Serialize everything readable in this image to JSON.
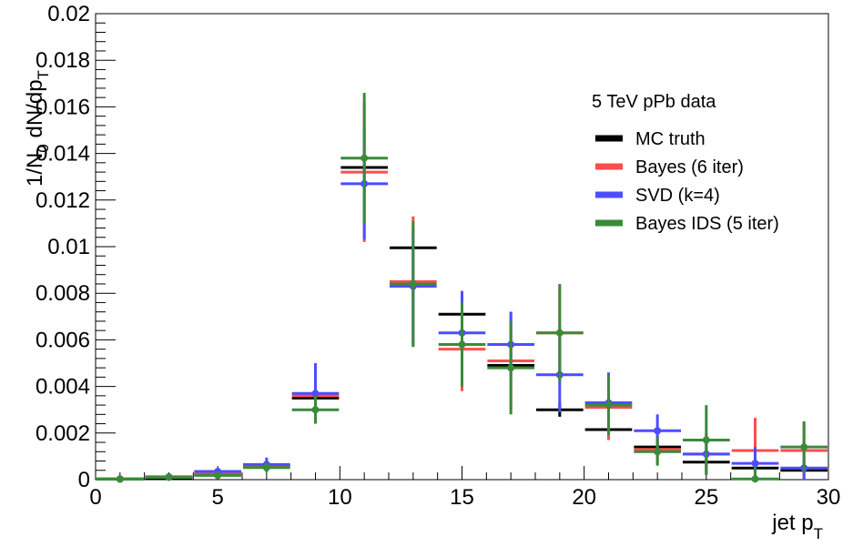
{
  "chart_data": {
    "type": "scatter",
    "title": "",
    "xlabel": "jet p",
    "xlabel_sub": "T",
    "ylabel": "1/N",
    "ylabel_sub": "0",
    "ylabel_rest": " dN/dp",
    "ylabel_sub2": "T",
    "xlim": [
      0,
      30
    ],
    "ylim": [
      0,
      0.02
    ],
    "grid": false,
    "legend_position": "top-right",
    "legend_header": "5 TeV pPb data",
    "x_ticks": [
      0,
      5,
      10,
      15,
      20,
      25,
      30
    ],
    "x_tick_labels": [
      "0",
      "5",
      "10",
      "15",
      "20",
      "25",
      "30"
    ],
    "y_ticks": [
      0,
      0.002,
      0.004,
      0.006,
      0.008,
      0.01,
      0.012,
      0.014,
      0.016,
      0.018,
      0.02
    ],
    "y_tick_labels": [
      "0",
      "0.002",
      "0.004",
      "0.006",
      "0.008",
      "0.01",
      "0.012",
      "0.014",
      "0.016",
      "0.018",
      "0.02"
    ],
    "bins": [
      [
        0,
        2
      ],
      [
        2,
        4
      ],
      [
        4,
        6
      ],
      [
        6,
        8
      ],
      [
        8,
        10
      ],
      [
        10,
        12
      ],
      [
        12,
        14
      ],
      [
        14,
        16
      ],
      [
        16,
        18
      ],
      [
        18,
        20
      ],
      [
        20,
        22
      ],
      [
        22,
        24
      ],
      [
        24,
        26
      ],
      [
        26,
        28
      ],
      [
        28,
        30
      ]
    ],
    "series": [
      {
        "name": "MC truth",
        "color": "#000000",
        "values": [
          3e-05,
          8e-05,
          0.00022,
          0.0006,
          0.0035,
          0.0134,
          0.00995,
          0.0071,
          0.0049,
          0.003,
          0.00215,
          0.0014,
          0.00075,
          0.0005,
          0.0004
        ],
        "errors": [
          1e-05,
          1e-05,
          2e-05,
          4e-05,
          8e-05,
          0.0001,
          0.0001,
          0.0001,
          0.0001,
          0.0003,
          0.0001,
          0.0001,
          0.0001,
          0.0001,
          0.0001
        ],
        "markers": false
      },
      {
        "name": "Bayes (6 iter)",
        "color": "#ff4d4d",
        "values": [
          3e-05,
          0.0001,
          0.0003,
          0.0006,
          0.0036,
          0.0132,
          0.0085,
          0.0056,
          0.0051,
          0.0063,
          0.0031,
          0.0013,
          0.0011,
          0.00125,
          0.00125
        ],
        "errors": [
          2e-05,
          3e-05,
          8e-05,
          0.0002,
          0.0005,
          0.003,
          0.0028,
          0.0018,
          0.0021,
          0.002,
          0.0014,
          0.0006,
          0.0009,
          0.0014,
          0.0012
        ],
        "markers": false
      },
      {
        "name": "SVD (k=4)",
        "color": "#4d4dff",
        "values": [
          3e-05,
          0.00012,
          0.00035,
          0.00065,
          0.0037,
          0.0127,
          0.0083,
          0.0063,
          0.0058,
          0.0045,
          0.0033,
          0.0021,
          0.0011,
          0.0007,
          0.0005
        ],
        "errors": [
          2e-05,
          4e-05,
          0.0001,
          0.0003,
          0.0013,
          0.0024,
          0.0025,
          0.0018,
          0.0014,
          0.0016,
          0.0013,
          0.0007,
          0.0008,
          0.0007,
          0.0006
        ],
        "markers": true
      },
      {
        "name": "Bayes IDS (5 iter)",
        "color": "#3a8a3a",
        "values": [
          2e-05,
          0.0001,
          0.00018,
          0.00052,
          0.003,
          0.0138,
          0.0084,
          0.0058,
          0.0048,
          0.0063,
          0.0032,
          0.0012,
          0.0017,
          3e-05,
          0.0014
        ],
        "errors": [
          2e-05,
          3e-05,
          0.0001,
          0.0002,
          0.0006,
          0.0028,
          0.0027,
          0.0018,
          0.002,
          0.0021,
          0.0013,
          0.0006,
          0.0015,
          0.0005,
          0.0011
        ],
        "markers": true
      }
    ]
  }
}
